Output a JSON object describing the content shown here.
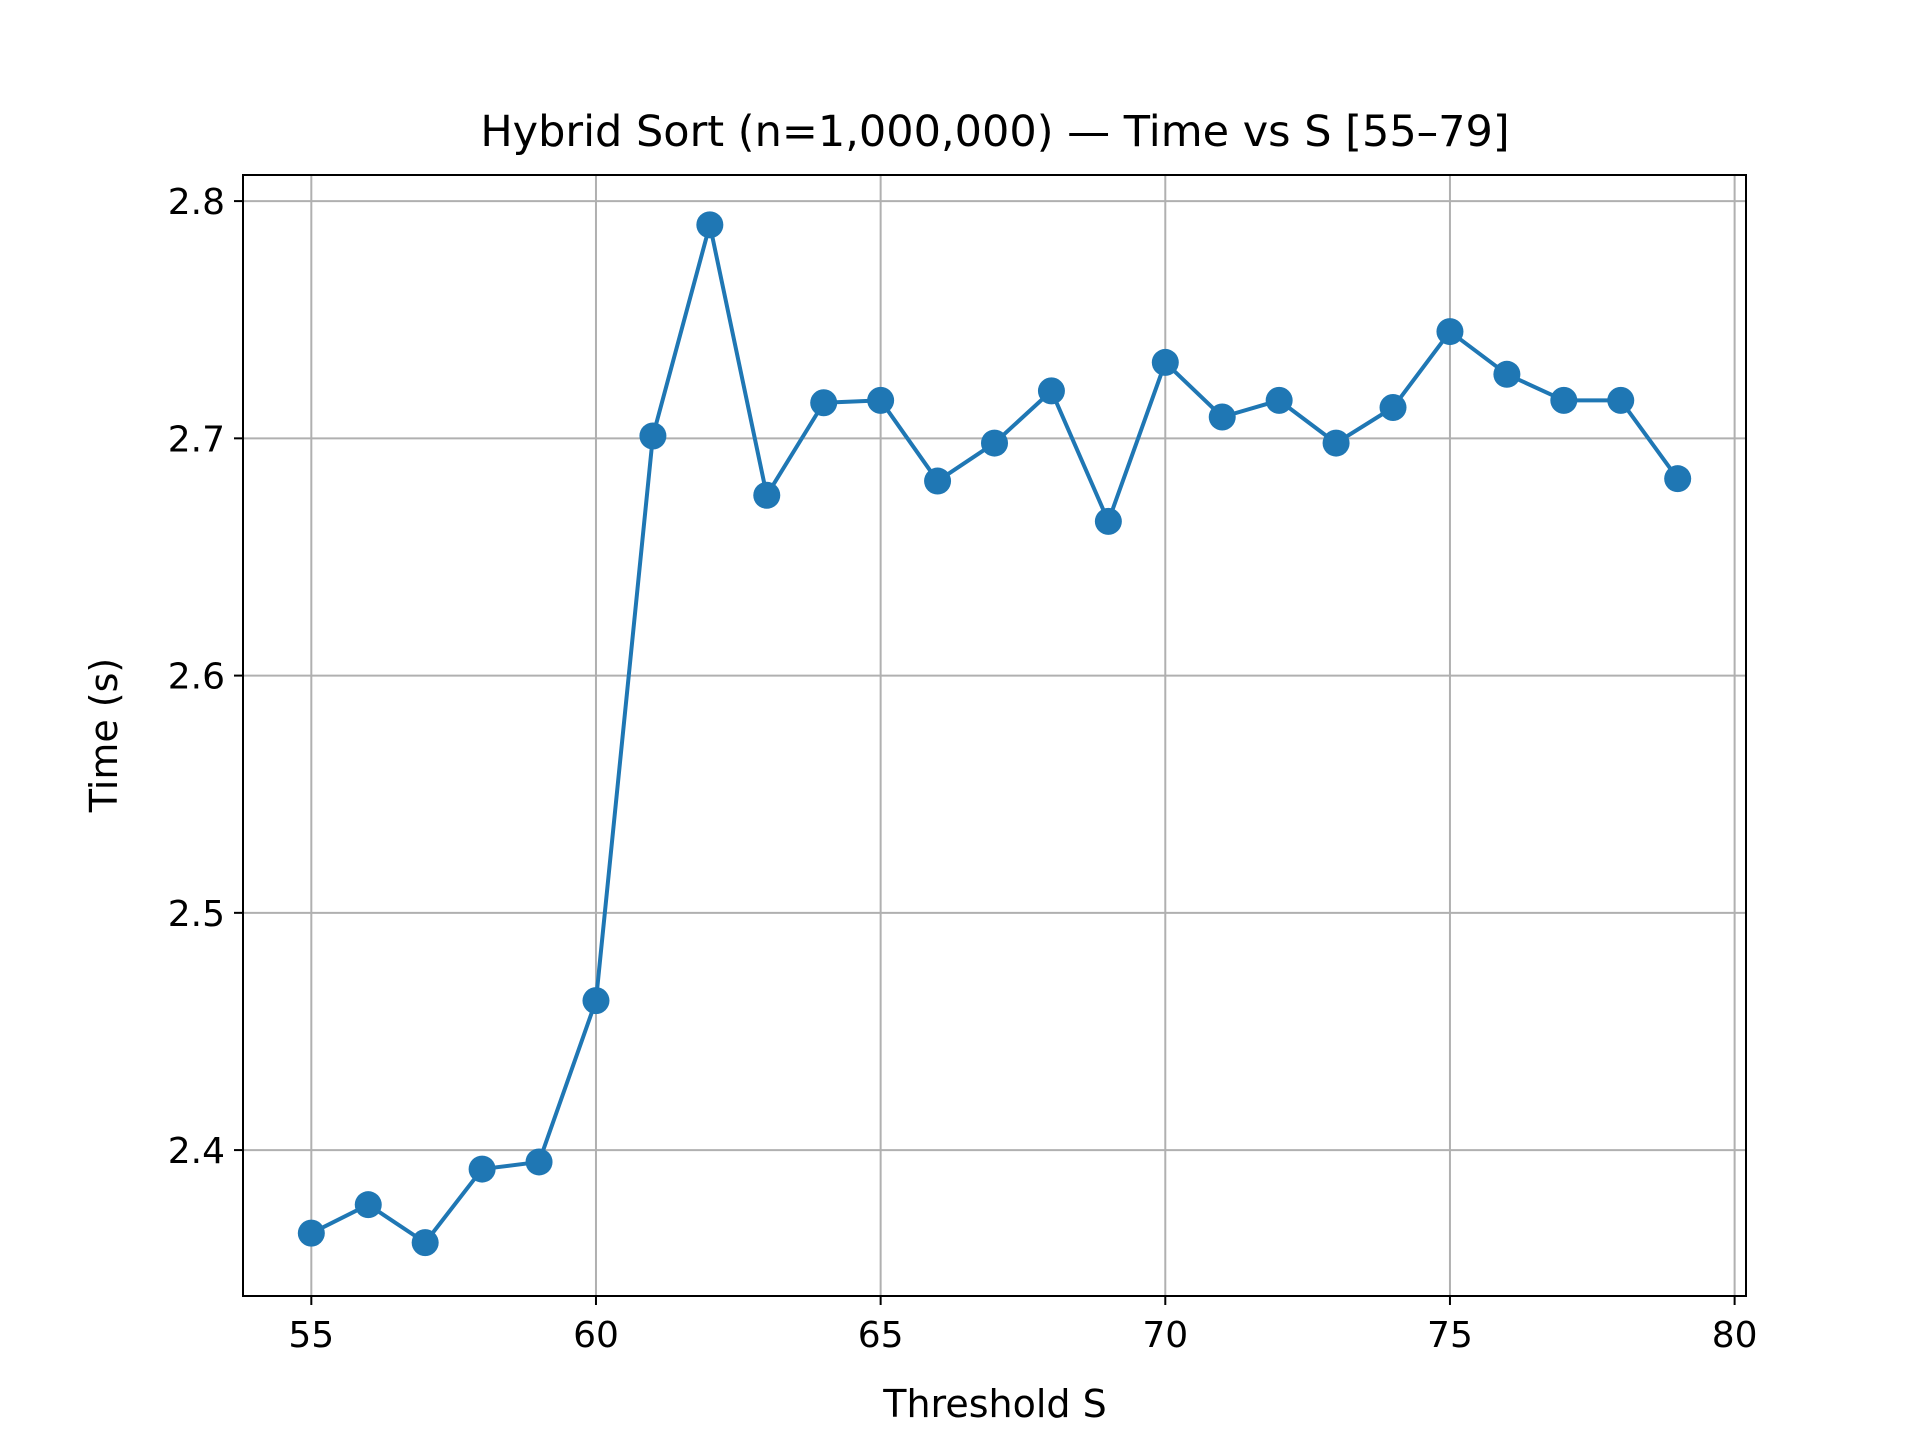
{
  "chart_data": {
    "type": "line",
    "title": "Hybrid Sort (n=1,000,000) — Time vs S [55–79]",
    "xlabel": "Threshold S",
    "ylabel": "Time (s)",
    "xlim": [
      53.8,
      80.2
    ],
    "ylim": [
      2.3385,
      2.811
    ],
    "xticks": [
      55,
      60,
      65,
      70,
      75,
      80
    ],
    "xtick_labels": [
      "55",
      "60",
      "65",
      "70",
      "75",
      "80"
    ],
    "yticks": [
      2.4,
      2.5,
      2.6,
      2.7,
      2.8
    ],
    "ytick_labels": [
      "2.4",
      "2.5",
      "2.6",
      "2.7",
      "2.8"
    ],
    "grid": true,
    "legend": "none",
    "series": [
      {
        "color": "#1f77b4",
        "marker": "circle",
        "x": [
          55,
          56,
          57,
          58,
          59,
          60,
          61,
          62,
          63,
          64,
          65,
          66,
          67,
          68,
          69,
          70,
          71,
          72,
          73,
          74,
          75,
          76,
          77,
          78,
          79
        ],
        "y": [
          2.365,
          2.377,
          2.361,
          2.392,
          2.395,
          2.463,
          2.701,
          2.79,
          2.676,
          2.715,
          2.716,
          2.682,
          2.698,
          2.72,
          2.665,
          2.732,
          2.709,
          2.716,
          2.698,
          2.713,
          2.745,
          2.727,
          2.716,
          2.716,
          2.683
        ]
      }
    ]
  }
}
